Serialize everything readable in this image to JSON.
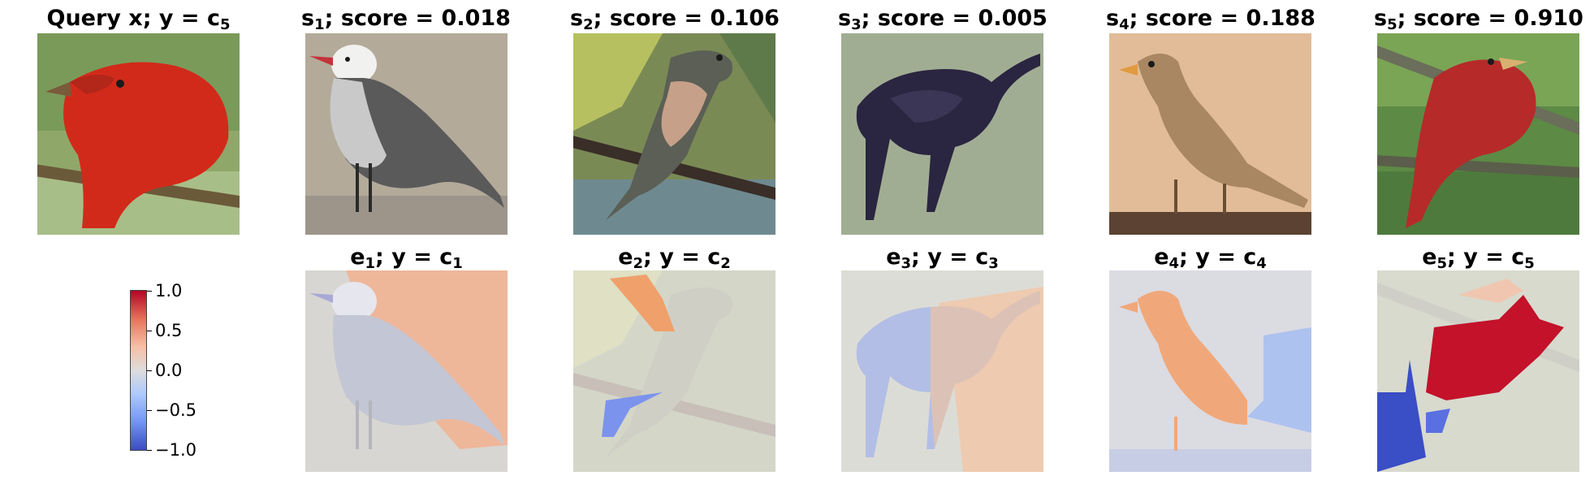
{
  "row1": [
    {
      "var": "Query x; y = c",
      "sub": "5",
      "suffix": ""
    },
    {
      "var": "s",
      "sub": "1",
      "suffix": "; score = 0.018"
    },
    {
      "var": "s",
      "sub": "2",
      "suffix": "; score = 0.106"
    },
    {
      "var": "s",
      "sub": "3",
      "suffix": "; score = 0.005"
    },
    {
      "var": "s",
      "sub": "4",
      "suffix": "; score = 0.188"
    },
    {
      "var": "s",
      "sub": "5",
      "suffix": "; score = 0.910"
    }
  ],
  "row2": [
    {
      "var": "e",
      "sub": "1",
      "mid": "; y = c",
      "sub2": "1"
    },
    {
      "var": "e",
      "sub": "2",
      "mid": "; y = c",
      "sub2": "2"
    },
    {
      "var": "e",
      "sub": "3",
      "mid": "; y = c",
      "sub2": "3"
    },
    {
      "var": "e",
      "sub": "4",
      "mid": "; y = c",
      "sub2": "4"
    },
    {
      "var": "e",
      "sub": "5",
      "mid": "; y = c",
      "sub2": "5"
    }
  ],
  "colorbar": {
    "ticks": [
      "1.0",
      "0.5",
      "0.0",
      "−0.5",
      "−1.0"
    ],
    "colormap": "coolwarm",
    "range": [
      -1.0,
      1.0
    ]
  },
  "colors": {
    "positive": "#b40426",
    "neutral": "#dddddd",
    "negative": "#3b4cc0"
  }
}
